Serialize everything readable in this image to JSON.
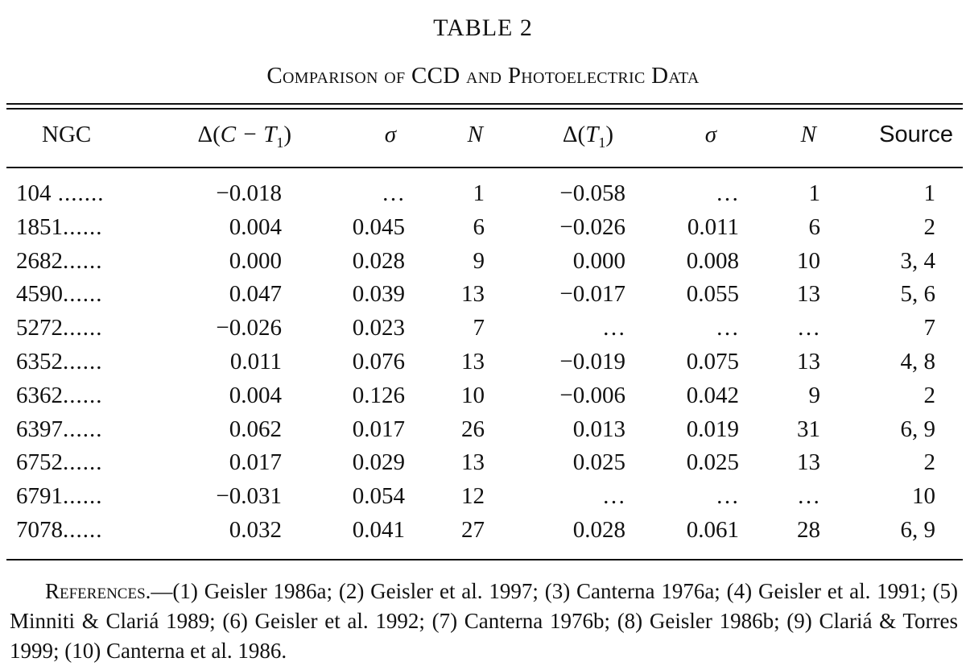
{
  "table": {
    "title": "TABLE 2",
    "caption": "Comparison of CCD and Photoelectric Data",
    "headers": {
      "ngc": "NGC",
      "d_ct1_prefix": "Δ(",
      "d_ct1_var": "C − T",
      "d_ct1_sub": "1",
      "d_ct1_suffix": ")",
      "sigma1": "σ",
      "n1": "N",
      "d_t1_prefix": "Δ(",
      "d_t1_var": "T",
      "d_t1_sub": "1",
      "d_t1_suffix": ")",
      "sigma2": "σ",
      "n2": "N",
      "source": "Source"
    },
    "rows": [
      {
        "ngc": "104",
        "dots": " .......",
        "d_ct1": "−0.018",
        "sigma1": "…",
        "n1": "1",
        "d_t1": "−0.058",
        "sigma2": "…",
        "n2": "1",
        "source": "1"
      },
      {
        "ngc": "1851",
        "dots": "......",
        "d_ct1": "0.004",
        "sigma1": "0.045",
        "n1": "6",
        "d_t1": "−0.026",
        "sigma2": "0.011",
        "n2": "6",
        "source": "2"
      },
      {
        "ngc": "2682",
        "dots": "......",
        "d_ct1": "0.000",
        "sigma1": "0.028",
        "n1": "9",
        "d_t1": "0.000",
        "sigma2": "0.008",
        "n2": "10",
        "source": "3, 4"
      },
      {
        "ngc": "4590",
        "dots": "......",
        "d_ct1": "0.047",
        "sigma1": "0.039",
        "n1": "13",
        "d_t1": "−0.017",
        "sigma2": "0.055",
        "n2": "13",
        "source": "5, 6"
      },
      {
        "ngc": "5272",
        "dots": "......",
        "d_ct1": "−0.026",
        "sigma1": "0.023",
        "n1": "7",
        "d_t1": "…",
        "sigma2": "…",
        "n2": "…",
        "source": "7"
      },
      {
        "ngc": "6352",
        "dots": "......",
        "d_ct1": "0.011",
        "sigma1": "0.076",
        "n1": "13",
        "d_t1": "−0.019",
        "sigma2": "0.075",
        "n2": "13",
        "source": "4, 8"
      },
      {
        "ngc": "6362",
        "dots": "......",
        "d_ct1": "0.004",
        "sigma1": "0.126",
        "n1": "10",
        "d_t1": "−0.006",
        "sigma2": "0.042",
        "n2": "9",
        "source": "2"
      },
      {
        "ngc": "6397",
        "dots": "......",
        "d_ct1": "0.062",
        "sigma1": "0.017",
        "n1": "26",
        "d_t1": "0.013",
        "sigma2": "0.019",
        "n2": "31",
        "source": "6, 9"
      },
      {
        "ngc": "6752",
        "dots": "......",
        "d_ct1": "0.017",
        "sigma1": "0.029",
        "n1": "13",
        "d_t1": "0.025",
        "sigma2": "0.025",
        "n2": "13",
        "source": "2"
      },
      {
        "ngc": "6791",
        "dots": "......",
        "d_ct1": "−0.031",
        "sigma1": "0.054",
        "n1": "12",
        "d_t1": "…",
        "sigma2": "…",
        "n2": "…",
        "source": "10"
      },
      {
        "ngc": "7078",
        "dots": "......",
        "d_ct1": "0.032",
        "sigma1": "0.041",
        "n1": "27",
        "d_t1": "0.028",
        "sigma2": "0.061",
        "n2": "28",
        "source": "6, 9"
      }
    ]
  },
  "references": {
    "label": "References.",
    "dash": "—",
    "text": "(1) Geisler 1986a; (2) Geisler et al. 1997; (3) Canterna 1976a; (4) Geisler et al. 1991; (5) Minniti & Clariá 1989; (6) Geisler et al. 1992; (7) Canterna 1976b; (8) Geisler 1986b; (9) Clariá & Torres 1999; (10) Canterna et al. 1986."
  }
}
